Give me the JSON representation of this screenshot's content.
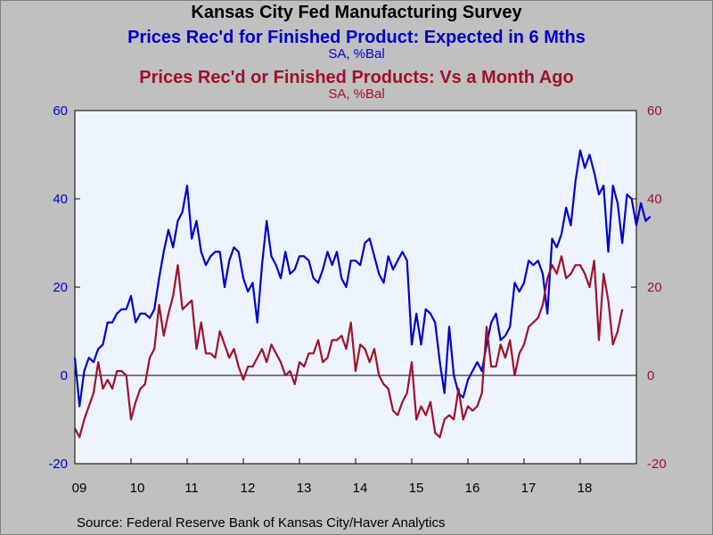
{
  "chart_data": {
    "type": "line",
    "title": "Kansas City Fed Manufacturing Survey",
    "colors": {
      "series1": "#0000cc",
      "series2": "#a0102a",
      "axis_left": "#0000cc",
      "axis_right": "#a0102a",
      "plot_bg": "#eef4ff"
    },
    "series": [
      {
        "name": "Prices Rec'd for Finished Product: Expected in 6 Mths",
        "units": "SA, %Bal",
        "axis": "left",
        "x_start": 2009.0,
        "x_step": 0.0833333,
        "values": [
          4,
          -7,
          1,
          4,
          3,
          6,
          7,
          12,
          12,
          14,
          15,
          15,
          18,
          12,
          14,
          14,
          13,
          15,
          22,
          28,
          33,
          29,
          35,
          37,
          43,
          31,
          35,
          28,
          25,
          27,
          28,
          28,
          20,
          26,
          29,
          28,
          22,
          19,
          21,
          12,
          25,
          35,
          27,
          25,
          22,
          28,
          23,
          24,
          27,
          27,
          26,
          22,
          21,
          24,
          28,
          25,
          28,
          22,
          20,
          26,
          26,
          25,
          30,
          31,
          27,
          23,
          21,
          27,
          24,
          26,
          28,
          26,
          7,
          14,
          7,
          15,
          14,
          12,
          3,
          -4,
          11,
          0,
          -4,
          -5,
          -1,
          1,
          3,
          1,
          7,
          12,
          14,
          8,
          9,
          11,
          21,
          19,
          21,
          26,
          25,
          26,
          23,
          14,
          31,
          29,
          32,
          38,
          34,
          44,
          51,
          47,
          50,
          46,
          41,
          43,
          28,
          43,
          39,
          30,
          41,
          40,
          34,
          39,
          35,
          36
        ]
      },
      {
        "name": "Prices Rec'd or Finished Products: Vs a Month Ago",
        "units": "SA, %Bal",
        "axis": "right",
        "x_start": 2009.0,
        "x_step": 0.0833333,
        "values": [
          -12,
          -14,
          -10,
          -7,
          -4,
          3,
          -3,
          -1,
          -3,
          1,
          1,
          0,
          -10,
          -6,
          -3,
          -2,
          4,
          6,
          16,
          9,
          14,
          18,
          25,
          15,
          16,
          17,
          6,
          12,
          5,
          5,
          4,
          10,
          7,
          4,
          6,
          2,
          -1,
          2,
          2,
          4,
          6,
          3,
          7,
          5,
          3,
          0,
          1,
          -2,
          3,
          2,
          5,
          5,
          8,
          3,
          4,
          8,
          8,
          9,
          6,
          12,
          1,
          7,
          6,
          3,
          6,
          0,
          -2,
          -3,
          -8,
          -9,
          -6,
          -4,
          3,
          -10,
          -7,
          -9,
          -6,
          -13,
          -14,
          -10,
          -9,
          -10,
          -3,
          -10,
          -7,
          -8,
          -7,
          -4,
          11,
          2,
          2,
          7,
          4,
          8,
          0,
          5,
          7,
          11,
          12,
          13,
          16,
          22,
          25,
          23,
          27,
          22,
          23,
          25,
          25,
          23,
          20,
          26,
          8,
          23,
          17,
          7,
          10,
          15
        ]
      }
    ],
    "subtitles": [
      "Prices Rec'd for Finished Product: Expected in 6 Mths",
      "SA, %Bal",
      "Prices Rec'd or Finished Products: Vs a Month Ago",
      "SA, %Bal"
    ],
    "x_tick_labels": [
      "09",
      "10",
      "11",
      "12",
      "13",
      "14",
      "15",
      "16",
      "17",
      "18"
    ],
    "x_range": [
      2009.0,
      2019.0
    ],
    "ylim_left": [
      -20,
      60
    ],
    "ylim_right": [
      -20,
      60
    ],
    "y_ticks_left": [
      "60",
      "40",
      "20",
      "0",
      "-20"
    ],
    "y_ticks_right": [
      "60",
      "40",
      "20",
      "0",
      "-20"
    ],
    "zero_line": true,
    "grid": false,
    "legend": "none",
    "source": "Source:  Federal Reserve Bank of Kansas City/Haver Analytics"
  }
}
